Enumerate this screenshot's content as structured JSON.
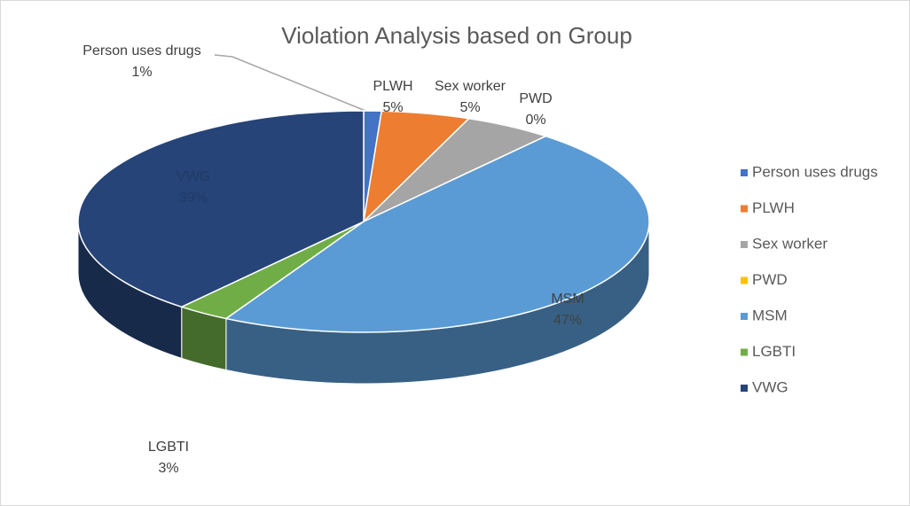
{
  "chart_data": {
    "type": "pie3d",
    "title": "Violation Analysis based on Group",
    "categories": [
      "Person uses drugs",
      "PLWH",
      "Sex worker",
      "PWD",
      "MSM",
      "LGBTI",
      "VWG"
    ],
    "values": [
      1,
      5,
      5,
      0,
      47,
      3,
      39
    ],
    "value_labels": [
      "1%",
      "5%",
      "5%",
      "0%",
      "47%",
      "3%",
      "39%"
    ],
    "colors": [
      "#4472c4",
      "#ed7d31",
      "#a5a5a5",
      "#ffc000",
      "#5b9bd5",
      "#70ad47",
      "#264478"
    ],
    "legend": "right"
  }
}
